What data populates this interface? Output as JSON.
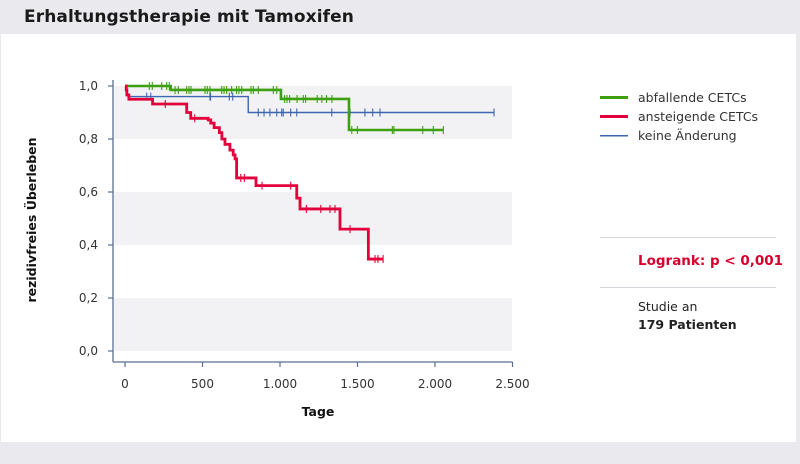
{
  "header": {
    "title": "Erhaltungstherapie mit Tamoxifen"
  },
  "colors": {
    "background": "#e9e9ee",
    "panel": "#ffffff",
    "band": "#f2f2f5",
    "axis": "#5a6f8e",
    "abfallende": "#3ea010",
    "ansteigende": "#e3003a",
    "keine": "#3f66b0",
    "logrank": "#d6002f"
  },
  "legend": {
    "items": [
      {
        "label": "abfallende CETCs",
        "color": "#3ea010"
      },
      {
        "label": "ansteigende CETCs",
        "color": "#e3003a"
      },
      {
        "label": "keine Änderung",
        "color": "#3f66b0"
      }
    ]
  },
  "stats": {
    "logrank": "Logrank: p < 0,001",
    "study_line1": "Studie an",
    "study_line2": "179 Patienten"
  },
  "chart_data": {
    "type": "line",
    "subtype": "kaplan-meier step",
    "title": "Erhaltungstherapie mit Tamoxifen",
    "xlabel": "Tage",
    "ylabel": "rezidivfreies Überleben",
    "xlim": [
      0,
      2500
    ],
    "ylim": [
      0,
      1.0
    ],
    "x_ticks": [
      0,
      500,
      1000,
      1500,
      2000,
      2500
    ],
    "x_tick_labels": [
      "0",
      "500",
      "1.000",
      "1.500",
      "2.000",
      "2.500"
    ],
    "y_ticks": [
      0,
      0.2,
      0.4,
      0.6,
      0.8,
      1.0
    ],
    "y_tick_labels": [
      "0,0",
      "0,2",
      "0,4",
      "0,6",
      "0,8",
      "1,0"
    ],
    "grid": "alternating horizontal bands (1,0–0,8; 0,6–0,4; 0,2–0,0)",
    "legend_position": "right",
    "annotations": [
      "Logrank: p < 0,001",
      "Studie an 179 Patienten"
    ],
    "series": [
      {
        "name": "abfallende CETCs",
        "color": "#3ea010",
        "steps": [
          [
            0,
            1.0
          ],
          [
            295,
            0.985
          ],
          [
            1006,
            0.951
          ],
          [
            1445,
            0.834
          ],
          [
            2054,
            0.834
          ]
        ],
        "censored": [
          [
            157,
            1.0
          ],
          [
            176,
            1.0
          ],
          [
            237,
            1.0
          ],
          [
            269,
            1.0
          ],
          [
            286,
            1.0
          ],
          [
            323,
            0.985
          ],
          [
            344,
            0.985
          ],
          [
            398,
            0.985
          ],
          [
            413,
            0.985
          ],
          [
            426,
            0.985
          ],
          [
            516,
            0.985
          ],
          [
            531,
            0.985
          ],
          [
            548,
            0.985
          ],
          [
            624,
            0.985
          ],
          [
            639,
            0.985
          ],
          [
            656,
            0.985
          ],
          [
            688,
            0.985
          ],
          [
            720,
            0.985
          ],
          [
            735,
            0.985
          ],
          [
            753,
            0.985
          ],
          [
            813,
            0.985
          ],
          [
            828,
            0.985
          ],
          [
            860,
            0.985
          ],
          [
            957,
            0.985
          ],
          [
            979,
            0.985
          ],
          [
            1030,
            0.951
          ],
          [
            1045,
            0.951
          ],
          [
            1062,
            0.951
          ],
          [
            1110,
            0.951
          ],
          [
            1150,
            0.951
          ],
          [
            1165,
            0.951
          ],
          [
            1240,
            0.951
          ],
          [
            1270,
            0.951
          ],
          [
            1300,
            0.951
          ],
          [
            1335,
            0.951
          ],
          [
            1463,
            0.834
          ],
          [
            1499,
            0.834
          ],
          [
            1725,
            0.834
          ],
          [
            1735,
            0.834
          ],
          [
            1921,
            0.834
          ],
          [
            1989,
            0.834
          ],
          [
            2054,
            0.834
          ]
        ]
      },
      {
        "name": "ansteigende CETCs",
        "color": "#e3003a",
        "steps": [
          [
            0,
            1.0
          ],
          [
            8,
            0.985
          ],
          [
            12,
            0.966
          ],
          [
            25,
            0.95
          ],
          [
            178,
            0.932
          ],
          [
            398,
            0.9
          ],
          [
            424,
            0.878
          ],
          [
            537,
            0.872
          ],
          [
            553,
            0.86
          ],
          [
            575,
            0.843
          ],
          [
            609,
            0.824
          ],
          [
            625,
            0.8
          ],
          [
            645,
            0.78
          ],
          [
            677,
            0.758
          ],
          [
            698,
            0.74
          ],
          [
            710,
            0.725
          ],
          [
            720,
            0.653
          ],
          [
            845,
            0.624
          ],
          [
            1108,
            0.577
          ],
          [
            1129,
            0.536
          ],
          [
            1387,
            0.46
          ],
          [
            1570,
            0.347
          ],
          [
            1667,
            0.347
          ]
        ],
        "censored": [
          [
            260,
            0.932
          ],
          [
            450,
            0.878
          ],
          [
            747,
            0.653
          ],
          [
            770,
            0.653
          ],
          [
            884,
            0.624
          ],
          [
            1069,
            0.624
          ],
          [
            1170,
            0.536
          ],
          [
            1263,
            0.536
          ],
          [
            1322,
            0.536
          ],
          [
            1355,
            0.536
          ],
          [
            1452,
            0.46
          ],
          [
            1613,
            0.347
          ],
          [
            1632,
            0.347
          ],
          [
            1665,
            0.347
          ]
        ]
      },
      {
        "name": "keine Änderung",
        "color": "#3f66b0",
        "steps": [
          [
            0,
            1.0
          ],
          [
            8,
            0.97
          ],
          [
            20,
            0.96
          ],
          [
            795,
            0.9
          ],
          [
            2381,
            0.9
          ]
        ],
        "censored": [
          [
            140,
            0.96
          ],
          [
            166,
            0.96
          ],
          [
            548,
            0.96
          ],
          [
            552,
            0.96
          ],
          [
            673,
            0.96
          ],
          [
            695,
            0.96
          ],
          [
            860,
            0.9
          ],
          [
            897,
            0.9
          ],
          [
            935,
            0.9
          ],
          [
            979,
            0.9
          ],
          [
            1011,
            0.9
          ],
          [
            1021,
            0.9
          ],
          [
            1069,
            0.9
          ],
          [
            1108,
            0.9
          ],
          [
            1334,
            0.9
          ],
          [
            1452,
            0.9
          ],
          [
            1548,
            0.9
          ],
          [
            1598,
            0.9
          ],
          [
            1645,
            0.9
          ],
          [
            2381,
            0.9
          ]
        ]
      }
    ]
  }
}
